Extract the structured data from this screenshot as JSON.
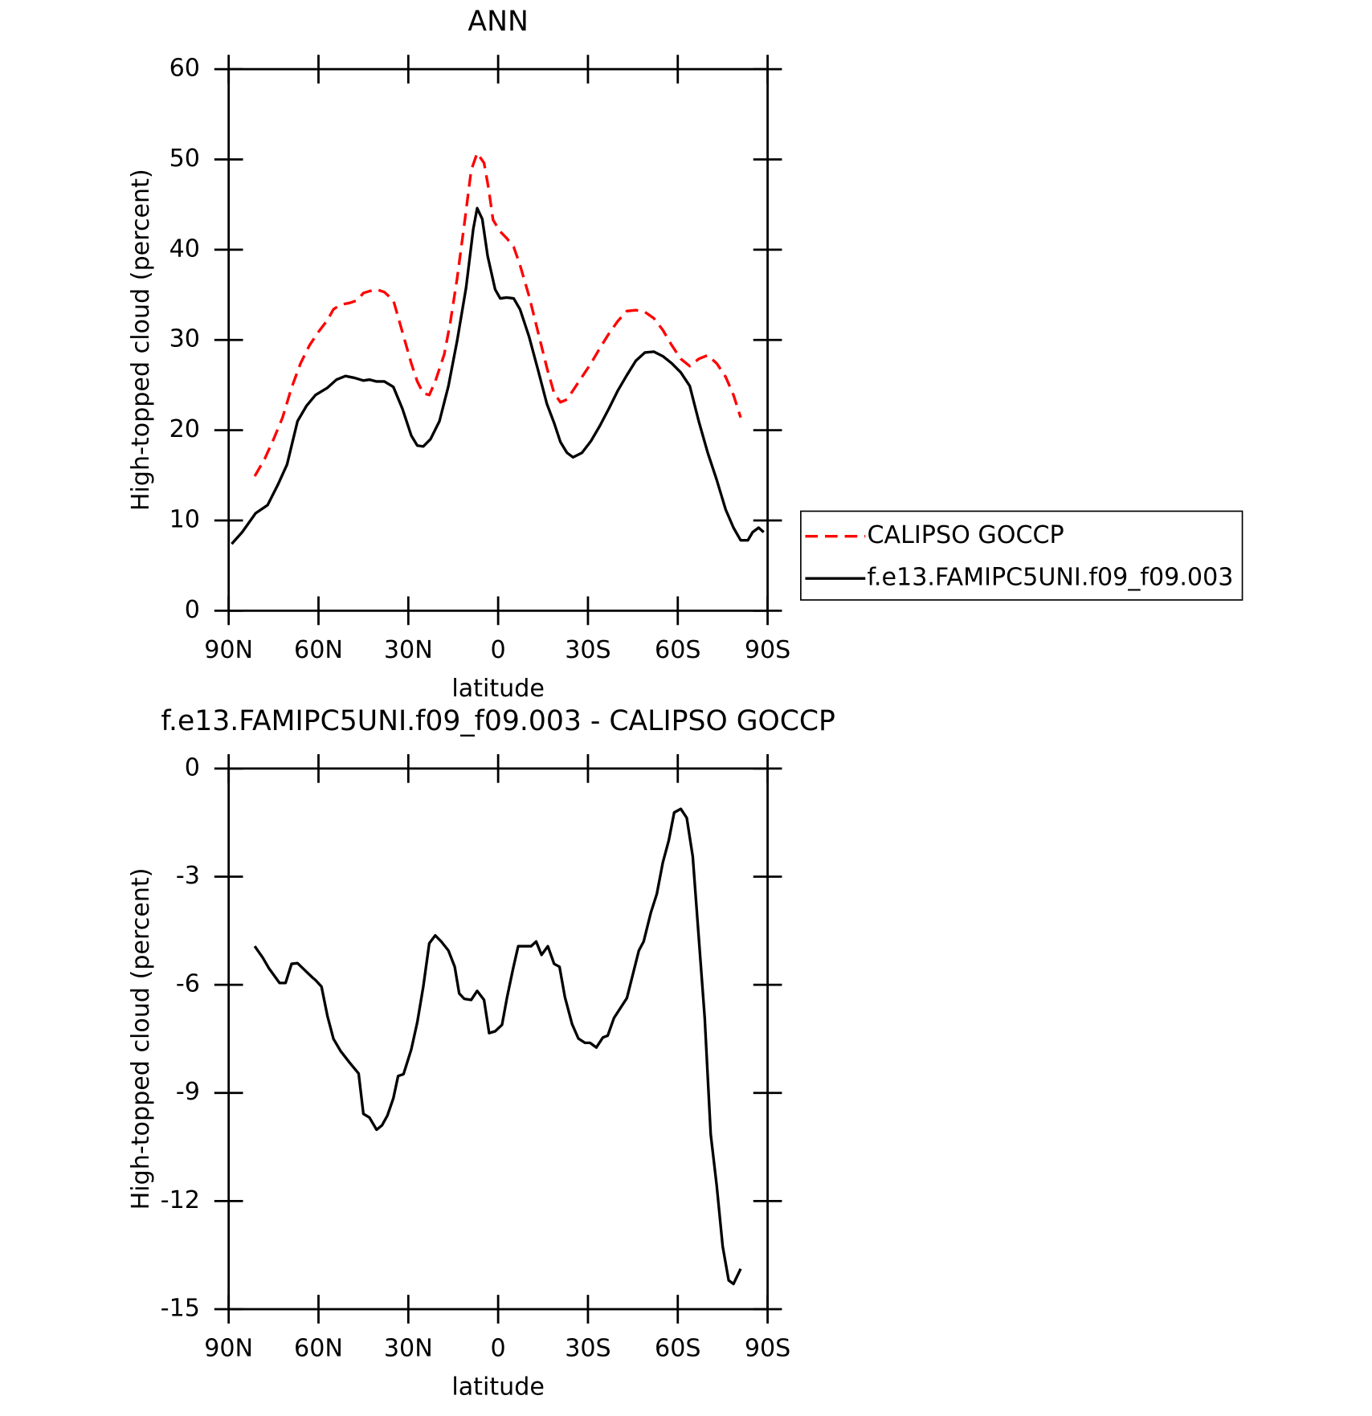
{
  "chart_data": [
    {
      "type": "line",
      "title": "ANN",
      "xlabel": "latitude",
      "ylabel": "High-topped cloud (percent)",
      "xlim": [
        90,
        -90
      ],
      "xticks": [
        {
          "value": 90,
          "label": "90N"
        },
        {
          "value": 60,
          "label": "60N"
        },
        {
          "value": 30,
          "label": "30N"
        },
        0,
        {
          "value": -30,
          "label": "30S"
        },
        {
          "value": -60,
          "label": "60S"
        },
        {
          "value": -90,
          "label": "90S"
        }
      ],
      "ylim": [
        0,
        60
      ],
      "yticks": [
        0,
        10,
        20,
        30,
        40,
        50,
        60
      ],
      "legend": "right",
      "series": [
        {
          "name": "CALIPSO GOCCP",
          "color": "#ff0000",
          "dashed": true,
          "x": [
            81.3,
            78,
            75,
            72,
            69,
            66,
            63,
            60,
            57,
            55,
            52.6,
            49.6,
            47,
            45,
            43,
            40.6,
            38,
            35,
            32,
            29,
            27,
            25,
            23,
            21,
            18,
            16,
            13.7,
            11.3,
            9,
            7,
            4.7,
            3.2,
            1.7,
            -0.7,
            -2.8,
            -5.2,
            -7.3,
            -10.3,
            -13.3,
            -16.3,
            -18.7,
            -20.8,
            -23,
            -25,
            -28,
            -31,
            -34,
            -37,
            -40,
            -43,
            -46,
            -49,
            -52,
            -55,
            -58,
            -61,
            -64,
            -67,
            -70,
            -73,
            -76,
            -78.6,
            -81
          ],
          "values": [
            14.9,
            16.8,
            19,
            21.4,
            24.7,
            27.4,
            29.4,
            30.9,
            32.2,
            33.4,
            33.9,
            34.1,
            34.4,
            35.2,
            35.4,
            35.6,
            35.3,
            34.4,
            30.9,
            27.4,
            25.4,
            24.1,
            23.9,
            25.4,
            28.4,
            31.9,
            36.8,
            42.8,
            48.8,
            50.7,
            49.6,
            46.8,
            43.3,
            42,
            41.3,
            40.3,
            38.3,
            34.9,
            30.9,
            26.9,
            24.1,
            23.1,
            23.4,
            24.4,
            25.9,
            27.4,
            29.1,
            30.7,
            32.1,
            33.2,
            33.3,
            33.1,
            32.4,
            31.1,
            29.4,
            27.9,
            27.1,
            27.9,
            28.3,
            27.4,
            25.9,
            23.9,
            21.4
          ]
        },
        {
          "name": "f.e13.FAMIPC5UNI.f09_f09.003",
          "color": "#000000",
          "dashed": false,
          "x": [
            89,
            85.5,
            81,
            77,
            73.5,
            70.5,
            67,
            64,
            61,
            57,
            54,
            51,
            48,
            45,
            43,
            40.6,
            38,
            35,
            32,
            29,
            27,
            25,
            22.6,
            19.6,
            16.6,
            13.7,
            10.7,
            8.3,
            7,
            5.3,
            3.5,
            1,
            -0.7,
            -2.8,
            -5.2,
            -7.3,
            -10.3,
            -13.3,
            -16.3,
            -18.7,
            -20.8,
            -23,
            -25,
            -28,
            -31,
            -34,
            -37,
            -40,
            -43,
            -46,
            -49,
            -52,
            -55,
            -58,
            -61,
            -64,
            -67,
            -70,
            -73,
            -76,
            -78.6,
            -81,
            -83.4,
            -85,
            -87,
            -88.7
          ],
          "values": [
            7.4,
            8.7,
            10.8,
            11.7,
            14,
            16.2,
            21,
            22.7,
            23.9,
            24.7,
            25.6,
            26,
            25.8,
            25.5,
            25.6,
            25.4,
            25.4,
            24.8,
            22.4,
            19.4,
            18.3,
            18.2,
            19,
            21,
            24.9,
            29.9,
            35.8,
            42.3,
            44.6,
            43.4,
            39.3,
            35.6,
            34.6,
            34.7,
            34.6,
            33.4,
            30.4,
            26.7,
            22.9,
            20.8,
            18.7,
            17.5,
            17,
            17.5,
            18.8,
            20.5,
            22.4,
            24.4,
            26.1,
            27.7,
            28.6,
            28.7,
            28.2,
            27.4,
            26.4,
            24.9,
            21,
            17.5,
            14.5,
            11.2,
            9.2,
            7.8,
            7.8,
            8.7,
            9.2,
            8.7
          ]
        }
      ]
    },
    {
      "type": "line",
      "title": "f.e13.FAMIPC5UNI.f09_f09.003 - CALIPSO GOCCP",
      "xlabel": "latitude",
      "ylabel": "High-topped cloud (percent)",
      "xlim": [
        90,
        -90
      ],
      "xticks": [
        {
          "value": 90,
          "label": "90N"
        },
        {
          "value": 60,
          "label": "60N"
        },
        {
          "value": 30,
          "label": "30N"
        },
        0,
        {
          "value": -30,
          "label": "30S"
        },
        {
          "value": -60,
          "label": "60S"
        },
        {
          "value": -90,
          "label": "90S"
        }
      ],
      "ylim": [
        -15,
        0
      ],
      "yticks": [
        -15,
        -12,
        -9,
        -6,
        -3,
        0
      ],
      "series": [
        {
          "color": "#000000",
          "dashed": false,
          "x": [
            81.3,
            78.6,
            76.5,
            73,
            71,
            69,
            67,
            64.5,
            62,
            61,
            59,
            57,
            55,
            52.6,
            49.6,
            46.6,
            45,
            43,
            40.6,
            38.8,
            37,
            35,
            33.4,
            31.6,
            29,
            27,
            25,
            23,
            21,
            19,
            16.6,
            14.5,
            13,
            11.3,
            9,
            7,
            4.7,
            3,
            1,
            -1.3,
            -3,
            -5,
            -6.7,
            -8.8,
            -11,
            -12.7,
            -14.5,
            -16.6,
            -18.7,
            -20.5,
            -22.3,
            -24.7,
            -26.8,
            -29,
            -30.7,
            -32.8,
            -35,
            -36.6,
            -38.7,
            -43,
            -47,
            -48.6,
            -51,
            -53,
            -55,
            -57,
            -58.8,
            -61,
            -63,
            -65,
            -69,
            -71,
            -73,
            -75,
            -77,
            -78.6,
            -81
          ],
          "values": [
            -4.93,
            -5.25,
            -5.55,
            -5.95,
            -5.95,
            -5.42,
            -5.4,
            -5.6,
            -5.8,
            -5.87,
            -6.05,
            -6.87,
            -7.5,
            -7.84,
            -8.16,
            -8.46,
            -9.58,
            -9.68,
            -10.02,
            -9.9,
            -9.63,
            -9.15,
            -8.53,
            -8.48,
            -7.79,
            -7.04,
            -6.05,
            -4.85,
            -4.63,
            -4.8,
            -5.05,
            -5.5,
            -6.24,
            -6.39,
            -6.42,
            -6.17,
            -6.42,
            -7.34,
            -7.29,
            -7.11,
            -6.34,
            -5.55,
            -4.93,
            -4.93,
            -4.93,
            -4.8,
            -5.17,
            -4.93,
            -5.42,
            -5.5,
            -6.34,
            -7.09,
            -7.49,
            -7.61,
            -7.61,
            -7.74,
            -7.46,
            -7.41,
            -6.92,
            -6.37,
            -5.05,
            -4.8,
            -4,
            -3.48,
            -2.61,
            -1.99,
            -1.22,
            -1.12,
            -1.37,
            -2.44,
            -6.92,
            -10.15,
            -11.57,
            -13.26,
            -14.2,
            -14.3,
            -13.88
          ]
        }
      ]
    }
  ]
}
